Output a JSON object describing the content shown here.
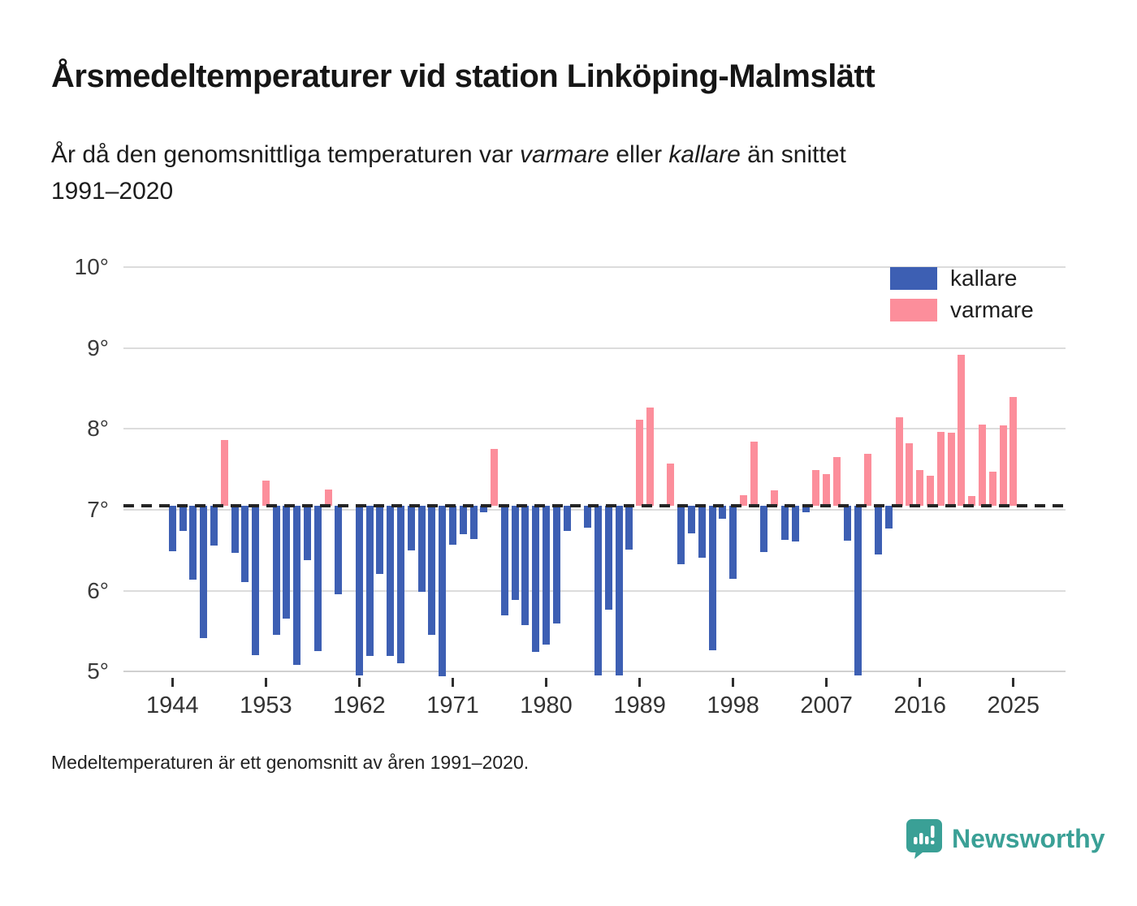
{
  "header": {
    "title": "Årsmedeltemperaturer vid station Linköping-Malmslätt",
    "subtitle": {
      "line1_parts": [
        {
          "text": "År då den genomsnittliga temperaturen var ",
          "italic": false
        },
        {
          "text": "varmare",
          "italic": true
        },
        {
          "text": " eller ",
          "italic": false
        },
        {
          "text": "kallare",
          "italic": true
        },
        {
          "text": " än snittet",
          "italic": false
        }
      ],
      "line2": "1991–2020"
    }
  },
  "chart_data": {
    "type": "bar",
    "title": "Årsmedeltemperaturer vid station Linköping-Malmslätt",
    "ylabel": "",
    "xlabel": "",
    "y_unit": "°",
    "ylim": [
      4.6,
      10
    ],
    "grid": true,
    "baseline": {
      "value": 7.05,
      "meaning": "snittet 1991–2020",
      "style": "dashed"
    },
    "y_ticks": [
      {
        "label": "10°",
        "value": 10
      },
      {
        "label": "9°",
        "value": 9
      },
      {
        "label": "8°",
        "value": 8
      },
      {
        "label": "7°",
        "value": 7
      },
      {
        "label": "6°",
        "value": 6
      },
      {
        "label": "5°",
        "value": 5
      }
    ],
    "x_ticks": [
      1944,
      1953,
      1962,
      1971,
      1980,
      1989,
      1998,
      2007,
      2016,
      2025
    ],
    "legend": [
      {
        "label": "kallare",
        "color": "#3D5FB3"
      },
      {
        "label": "varmare",
        "color": "#FC8E9B"
      }
    ],
    "legend_position": "top-right",
    "colors": {
      "kallare": "#3D5FB3",
      "varmare": "#FC8E9B",
      "baseline": "#242424",
      "grid": "#DCDCDC"
    },
    "points": [
      {
        "year": 1944,
        "value": 6.49
      },
      {
        "year": 1945,
        "value": 6.74
      },
      {
        "year": 1946,
        "value": 6.14
      },
      {
        "year": 1947,
        "value": 5.42
      },
      {
        "year": 1948,
        "value": 6.56
      },
      {
        "year": 1949,
        "value": 7.86
      },
      {
        "year": 1950,
        "value": 6.47
      },
      {
        "year": 1951,
        "value": 6.11
      },
      {
        "year": 1952,
        "value": 5.2
      },
      {
        "year": 1953,
        "value": 7.36
      },
      {
        "year": 1954,
        "value": 5.46
      },
      {
        "year": 1955,
        "value": 5.66
      },
      {
        "year": 1956,
        "value": 5.08
      },
      {
        "year": 1957,
        "value": 6.38
      },
      {
        "year": 1958,
        "value": 5.25
      },
      {
        "year": 1959,
        "value": 7.25
      },
      {
        "year": 1960,
        "value": 5.96
      },
      {
        "year": 1961,
        "value": null
      },
      {
        "year": 1962,
        "value": 4.95
      },
      {
        "year": 1963,
        "value": 5.19
      },
      {
        "year": 1964,
        "value": 6.21
      },
      {
        "year": 1965,
        "value": 5.19
      },
      {
        "year": 1966,
        "value": 5.1
      },
      {
        "year": 1967,
        "value": 6.5
      },
      {
        "year": 1968,
        "value": 5.99
      },
      {
        "year": 1969,
        "value": 5.46
      },
      {
        "year": 1970,
        "value": 4.94
      },
      {
        "year": 1971,
        "value": 6.57
      },
      {
        "year": 1972,
        "value": 6.7
      },
      {
        "year": 1973,
        "value": 6.64
      },
      {
        "year": 1974,
        "value": 6.97
      },
      {
        "year": 1975,
        "value": 7.75
      },
      {
        "year": 1976,
        "value": 5.7
      },
      {
        "year": 1977,
        "value": 5.89
      },
      {
        "year": 1978,
        "value": 5.58
      },
      {
        "year": 1979,
        "value": 5.24
      },
      {
        "year": 1980,
        "value": 5.33
      },
      {
        "year": 1981,
        "value": 5.6
      },
      {
        "year": 1982,
        "value": 6.74
      },
      {
        "year": 1983,
        "value": null
      },
      {
        "year": 1984,
        "value": 6.78
      },
      {
        "year": 1985,
        "value": 4.95
      },
      {
        "year": 1986,
        "value": 5.77
      },
      {
        "year": 1987,
        "value": 4.95
      },
      {
        "year": 1988,
        "value": 6.51
      },
      {
        "year": 1989,
        "value": 8.11
      },
      {
        "year": 1990,
        "value": 8.26
      },
      {
        "year": 1991,
        "value": null
      },
      {
        "year": 1992,
        "value": 7.57
      },
      {
        "year": 1993,
        "value": 6.33
      },
      {
        "year": 1994,
        "value": 6.71
      },
      {
        "year": 1995,
        "value": 6.41
      },
      {
        "year": 1996,
        "value": 5.26
      },
      {
        "year": 1997,
        "value": 6.89
      },
      {
        "year": 1998,
        "value": 6.15
      },
      {
        "year": 1999,
        "value": 7.18
      },
      {
        "year": 2000,
        "value": 7.84
      },
      {
        "year": 2001,
        "value": 6.48
      },
      {
        "year": 2002,
        "value": 7.24
      },
      {
        "year": 2003,
        "value": 6.63
      },
      {
        "year": 2004,
        "value": 6.61
      },
      {
        "year": 2005,
        "value": 6.97
      },
      {
        "year": 2006,
        "value": 7.49
      },
      {
        "year": 2007,
        "value": 7.44
      },
      {
        "year": 2008,
        "value": 7.65
      },
      {
        "year": 2009,
        "value": 6.62
      },
      {
        "year": 2010,
        "value": 4.95
      },
      {
        "year": 2011,
        "value": 7.69
      },
      {
        "year": 2012,
        "value": 6.45
      },
      {
        "year": 2013,
        "value": 6.77
      },
      {
        "year": 2014,
        "value": 8.14
      },
      {
        "year": 2015,
        "value": 7.82
      },
      {
        "year": 2016,
        "value": 7.49
      },
      {
        "year": 2017,
        "value": 7.42
      },
      {
        "year": 2018,
        "value": 7.96
      },
      {
        "year": 2019,
        "value": 7.95
      },
      {
        "year": 2020,
        "value": 8.92
      },
      {
        "year": 2021,
        "value": 7.17
      },
      {
        "year": 2022,
        "value": 8.05
      },
      {
        "year": 2023,
        "value": 7.47
      },
      {
        "year": 2024,
        "value": 8.04
      },
      {
        "year": 2025,
        "value": 8.39
      }
    ]
  },
  "footer": {
    "note": "Medeltemperaturen är ett genomsnitt av åren 1991–2020."
  },
  "branding": {
    "name": "Newsworthy",
    "color": "#3AA096"
  }
}
